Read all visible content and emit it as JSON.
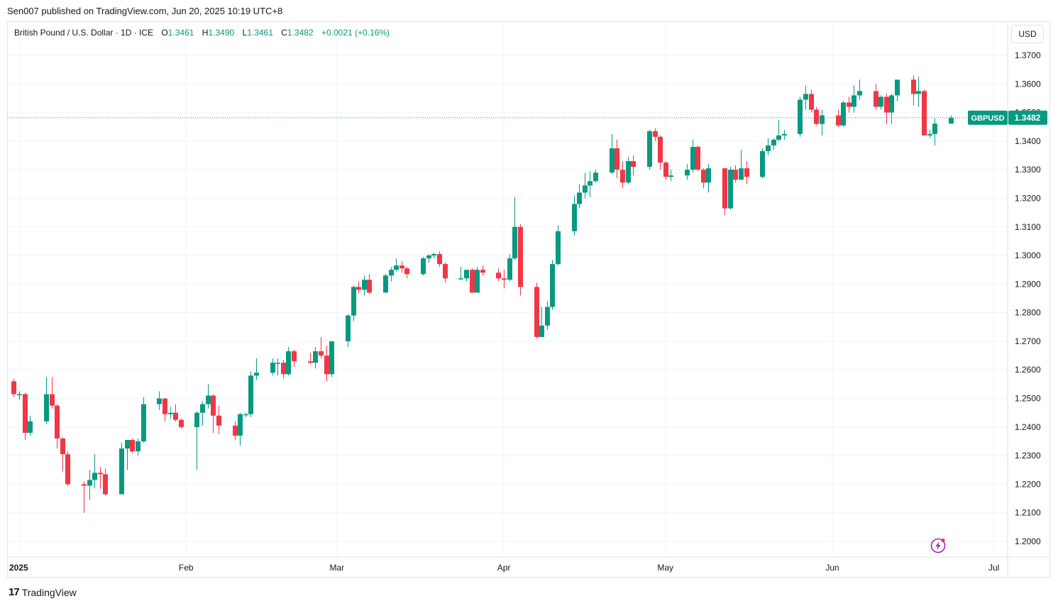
{
  "header": {
    "published": "Sen007 published on TradingView.com, Jun 20, 2025 10:19 UTC+8"
  },
  "legend": {
    "symbol": "British Pound / U.S. Dollar · 1D · ICE",
    "open_label": "O",
    "open": "1.3461",
    "high_label": "H",
    "high": "1.3490",
    "low_label": "L",
    "low": "1.3461",
    "close_label": "C",
    "close": "1.3482",
    "change": "+0.0021 (+0.16%)"
  },
  "toolbar": {
    "currency": "USD"
  },
  "price_tag": {
    "ticker": "GBPUSD",
    "price": "1.3482"
  },
  "footer": {
    "brand": "TradingView",
    "logo_icon": "tradingview-logo-icon"
  },
  "colors": {
    "up": "#089981",
    "down": "#f23645",
    "grid": "#f0f3fa",
    "axis_text": "#131722",
    "tag": "#089981",
    "bolt": "#9c27b0"
  },
  "chart_data": {
    "type": "candlestick",
    "title": "British Pound / U.S. Dollar",
    "interval": "1D",
    "ylim": [
      1.195,
      1.375
    ],
    "y_ticks": [
      "1.3700",
      "1.3600",
      "1.3500",
      "1.3400",
      "1.3300",
      "1.3200",
      "1.3100",
      "1.3000",
      "1.2900",
      "1.2800",
      "1.2700",
      "1.2600",
      "1.2500",
      "1.2400",
      "1.2300",
      "1.2200",
      "1.2100",
      "1.2000"
    ],
    "x_ticks": [
      {
        "label": "2025",
        "date": "2025-01-01"
      },
      {
        "label": "Feb",
        "date": "2025-02-01"
      },
      {
        "label": "Mar",
        "date": "2025-03-01"
      },
      {
        "label": "Apr",
        "date": "2025-04-01"
      },
      {
        "label": "May",
        "date": "2025-05-01"
      },
      {
        "label": "Jun",
        "date": "2025-06-01"
      },
      {
        "label": "Jul",
        "date": "2025-07-01"
      }
    ],
    "last_price": 1.3482,
    "ohlc": [
      {
        "date": "2024-12-31",
        "open": 1.256,
        "high": 1.257,
        "low": 1.2505,
        "close": 1.2515
      },
      {
        "date": "2025-01-01",
        "open": 1.2515,
        "high": 1.2525,
        "low": 1.2495,
        "close": 1.2515
      },
      {
        "date": "2025-01-02",
        "open": 1.2515,
        "high": 1.252,
        "low": 1.2355,
        "close": 1.238
      },
      {
        "date": "2025-01-03",
        "open": 1.238,
        "high": 1.244,
        "low": 1.237,
        "close": 1.242
      },
      {
        "date": "2025-01-06",
        "open": 1.242,
        "high": 1.2575,
        "low": 1.241,
        "close": 1.2515
      },
      {
        "date": "2025-01-07",
        "open": 1.2515,
        "high": 1.2575,
        "low": 1.2465,
        "close": 1.2475
      },
      {
        "date": "2025-01-08",
        "open": 1.2475,
        "high": 1.248,
        "low": 1.2325,
        "close": 1.236
      },
      {
        "date": "2025-01-09",
        "open": 1.236,
        "high": 1.2365,
        "low": 1.2245,
        "close": 1.2305
      },
      {
        "date": "2025-01-10",
        "open": 1.2305,
        "high": 1.2315,
        "low": 1.2195,
        "close": 1.22
      },
      {
        "date": "2025-01-13",
        "open": 1.22,
        "high": 1.221,
        "low": 1.21,
        "close": 1.2195
      },
      {
        "date": "2025-01-14",
        "open": 1.2195,
        "high": 1.225,
        "low": 1.2145,
        "close": 1.2215
      },
      {
        "date": "2025-01-15",
        "open": 1.2215,
        "high": 1.2305,
        "low": 1.2185,
        "close": 1.224
      },
      {
        "date": "2025-01-16",
        "open": 1.224,
        "high": 1.226,
        "low": 1.2185,
        "close": 1.2235
      },
      {
        "date": "2025-01-17",
        "open": 1.2235,
        "high": 1.2255,
        "low": 1.216,
        "close": 1.2165
      },
      {
        "date": "2025-01-20",
        "open": 1.2165,
        "high": 1.2345,
        "low": 1.2165,
        "close": 1.2325
      },
      {
        "date": "2025-01-21",
        "open": 1.2325,
        "high": 1.235,
        "low": 1.225,
        "close": 1.2355
      },
      {
        "date": "2025-01-22",
        "open": 1.2355,
        "high": 1.236,
        "low": 1.231,
        "close": 1.2315
      },
      {
        "date": "2025-01-23",
        "open": 1.2315,
        "high": 1.236,
        "low": 1.23,
        "close": 1.235
      },
      {
        "date": "2025-01-24",
        "open": 1.235,
        "high": 1.2505,
        "low": 1.2345,
        "close": 1.248
      },
      {
        "date": "2025-01-27",
        "open": 1.248,
        "high": 1.2525,
        "low": 1.246,
        "close": 1.25
      },
      {
        "date": "2025-01-28",
        "open": 1.25,
        "high": 1.25,
        "low": 1.242,
        "close": 1.2445
      },
      {
        "date": "2025-01-29",
        "open": 1.2445,
        "high": 1.247,
        "low": 1.243,
        "close": 1.245
      },
      {
        "date": "2025-01-30",
        "open": 1.245,
        "high": 1.248,
        "low": 1.242,
        "close": 1.2425
      },
      {
        "date": "2025-01-31",
        "open": 1.2425,
        "high": 1.243,
        "low": 1.2395,
        "close": 1.24
      },
      {
        "date": "2025-02-03",
        "open": 1.24,
        "high": 1.2455,
        "low": 1.225,
        "close": 1.245
      },
      {
        "date": "2025-02-04",
        "open": 1.245,
        "high": 1.249,
        "low": 1.2405,
        "close": 1.248
      },
      {
        "date": "2025-02-05",
        "open": 1.248,
        "high": 1.255,
        "low": 1.2465,
        "close": 1.251
      },
      {
        "date": "2025-02-06",
        "open": 1.251,
        "high": 1.2515,
        "low": 1.238,
        "close": 1.244
      },
      {
        "date": "2025-02-07",
        "open": 1.244,
        "high": 1.2475,
        "low": 1.2375,
        "close": 1.2405
      },
      {
        "date": "2025-02-10",
        "open": 1.2405,
        "high": 1.242,
        "low": 1.2355,
        "close": 1.237
      },
      {
        "date": "2025-02-11",
        "open": 1.237,
        "high": 1.245,
        "low": 1.2335,
        "close": 1.2445
      },
      {
        "date": "2025-02-12",
        "open": 1.2445,
        "high": 1.245,
        "low": 1.2435,
        "close": 1.2445
      },
      {
        "date": "2025-02-13",
        "open": 1.2445,
        "high": 1.2595,
        "low": 1.2435,
        "close": 1.258
      },
      {
        "date": "2025-02-14",
        "open": 1.258,
        "high": 1.264,
        "low": 1.2565,
        "close": 1.259
      },
      {
        "date": "2025-02-17",
        "open": 1.259,
        "high": 1.264,
        "low": 1.258,
        "close": 1.2625
      },
      {
        "date": "2025-02-18",
        "open": 1.2625,
        "high": 1.264,
        "low": 1.258,
        "close": 1.2625
      },
      {
        "date": "2025-02-19",
        "open": 1.2625,
        "high": 1.2635,
        "low": 1.257,
        "close": 1.2585
      },
      {
        "date": "2025-02-20",
        "open": 1.2585,
        "high": 1.268,
        "low": 1.258,
        "close": 1.2665
      },
      {
        "date": "2025-02-21",
        "open": 1.2665,
        "high": 1.267,
        "low": 1.261,
        "close": 1.263
      },
      {
        "date": "2025-02-24",
        "open": 1.263,
        "high": 1.266,
        "low": 1.262,
        "close": 1.2625
      },
      {
        "date": "2025-02-25",
        "open": 1.2625,
        "high": 1.268,
        "low": 1.2605,
        "close": 1.2665
      },
      {
        "date": "2025-02-26",
        "open": 1.2665,
        "high": 1.2715,
        "low": 1.264,
        "close": 1.265
      },
      {
        "date": "2025-02-27",
        "open": 1.265,
        "high": 1.2685,
        "low": 1.256,
        "close": 1.2585
      },
      {
        "date": "2025-02-28",
        "open": 1.2585,
        "high": 1.27,
        "low": 1.2575,
        "close": 1.27
      },
      {
        "date": "2025-03-03",
        "open": 1.27,
        "high": 1.2795,
        "low": 1.268,
        "close": 1.279
      },
      {
        "date": "2025-03-04",
        "open": 1.279,
        "high": 1.2895,
        "low": 1.277,
        "close": 1.289
      },
      {
        "date": "2025-03-05",
        "open": 1.289,
        "high": 1.291,
        "low": 1.287,
        "close": 1.288
      },
      {
        "date": "2025-03-06",
        "open": 1.288,
        "high": 1.293,
        "low": 1.286,
        "close": 1.2915
      },
      {
        "date": "2025-03-07",
        "open": 1.2915,
        "high": 1.2935,
        "low": 1.2865,
        "close": 1.287
      },
      {
        "date": "2025-03-10",
        "open": 1.287,
        "high": 1.2935,
        "low": 1.287,
        "close": 1.293
      },
      {
        "date": "2025-03-11",
        "open": 1.293,
        "high": 1.296,
        "low": 1.291,
        "close": 1.295
      },
      {
        "date": "2025-03-12",
        "open": 1.295,
        "high": 1.299,
        "low": 1.2945,
        "close": 1.2965
      },
      {
        "date": "2025-03-13",
        "open": 1.2965,
        "high": 1.298,
        "low": 1.294,
        "close": 1.2955
      },
      {
        "date": "2025-03-14",
        "open": 1.2955,
        "high": 1.296,
        "low": 1.292,
        "close": 1.2935
      },
      {
        "date": "2025-03-17",
        "open": 1.2935,
        "high": 1.2995,
        "low": 1.293,
        "close": 1.299
      },
      {
        "date": "2025-03-18",
        "open": 1.299,
        "high": 1.3005,
        "low": 1.2975,
        "close": 1.3
      },
      {
        "date": "2025-03-19",
        "open": 1.3,
        "high": 1.301,
        "low": 1.299,
        "close": 1.3005
      },
      {
        "date": "2025-03-20",
        "open": 1.3005,
        "high": 1.3015,
        "low": 1.296,
        "close": 1.297
      },
      {
        "date": "2025-03-21",
        "open": 1.297,
        "high": 1.2975,
        "low": 1.2905,
        "close": 1.292
      },
      {
        "date": "2025-03-24",
        "open": 1.292,
        "high": 1.296,
        "low": 1.2915,
        "close": 1.292
      },
      {
        "date": "2025-03-25",
        "open": 1.292,
        "high": 1.295,
        "low": 1.291,
        "close": 1.295
      },
      {
        "date": "2025-03-26",
        "open": 1.295,
        "high": 1.2955,
        "low": 1.287,
        "close": 1.287
      },
      {
        "date": "2025-03-27",
        "open": 1.287,
        "high": 1.296,
        "low": 1.287,
        "close": 1.295
      },
      {
        "date": "2025-03-28",
        "open": 1.295,
        "high": 1.2965,
        "low": 1.293,
        "close": 1.294
      },
      {
        "date": "2025-03-31",
        "open": 1.294,
        "high": 1.2955,
        "low": 1.291,
        "close": 1.292
      },
      {
        "date": "2025-04-01",
        "open": 1.292,
        "high": 1.295,
        "low": 1.2885,
        "close": 1.2915
      },
      {
        "date": "2025-04-02",
        "open": 1.2915,
        "high": 1.3005,
        "low": 1.291,
        "close": 1.299
      },
      {
        "date": "2025-04-03",
        "open": 1.299,
        "high": 1.3205,
        "low": 1.2985,
        "close": 1.31
      },
      {
        "date": "2025-04-04",
        "open": 1.31,
        "high": 1.311,
        "low": 1.286,
        "close": 1.289
      },
      {
        "date": "2025-04-07",
        "open": 1.289,
        "high": 1.2905,
        "low": 1.271,
        "close": 1.2715
      },
      {
        "date": "2025-04-08",
        "open": 1.2715,
        "high": 1.282,
        "low": 1.2715,
        "close": 1.2755
      },
      {
        "date": "2025-04-09",
        "open": 1.2755,
        "high": 1.284,
        "low": 1.274,
        "close": 1.282
      },
      {
        "date": "2025-04-10",
        "open": 1.282,
        "high": 1.2985,
        "low": 1.281,
        "close": 1.297
      },
      {
        "date": "2025-04-11",
        "open": 1.297,
        "high": 1.3105,
        "low": 1.2965,
        "close": 1.3085
      },
      {
        "date": "2025-04-14",
        "open": 1.3085,
        "high": 1.321,
        "low": 1.307,
        "close": 1.318
      },
      {
        "date": "2025-04-15",
        "open": 1.318,
        "high": 1.325,
        "low": 1.3165,
        "close": 1.322
      },
      {
        "date": "2025-04-16",
        "open": 1.322,
        "high": 1.329,
        "low": 1.32,
        "close": 1.3245
      },
      {
        "date": "2025-04-17",
        "open": 1.3245,
        "high": 1.3295,
        "low": 1.3205,
        "close": 1.326
      },
      {
        "date": "2025-04-18",
        "open": 1.326,
        "high": 1.33,
        "low": 1.3255,
        "close": 1.329
      },
      {
        "date": "2025-04-21",
        "open": 1.329,
        "high": 1.3425,
        "low": 1.3285,
        "close": 1.3375
      },
      {
        "date": "2025-04-22",
        "open": 1.3375,
        "high": 1.3405,
        "low": 1.327,
        "close": 1.33
      },
      {
        "date": "2025-04-23",
        "open": 1.33,
        "high": 1.333,
        "low": 1.3235,
        "close": 1.3255
      },
      {
        "date": "2025-04-24",
        "open": 1.3255,
        "high": 1.3345,
        "low": 1.325,
        "close": 1.333
      },
      {
        "date": "2025-04-25",
        "open": 1.333,
        "high": 1.335,
        "low": 1.328,
        "close": 1.331
      },
      {
        "date": "2025-04-28",
        "open": 1.331,
        "high": 1.344,
        "low": 1.33,
        "close": 1.3435
      },
      {
        "date": "2025-04-29",
        "open": 1.3435,
        "high": 1.3445,
        "low": 1.34,
        "close": 1.3415
      },
      {
        "date": "2025-04-30",
        "open": 1.3415,
        "high": 1.342,
        "low": 1.33,
        "close": 1.3325
      },
      {
        "date": "2025-05-01",
        "open": 1.3325,
        "high": 1.333,
        "low": 1.3265,
        "close": 1.3275
      },
      {
        "date": "2025-05-02",
        "open": 1.3275,
        "high": 1.33,
        "low": 1.326,
        "close": 1.328
      },
      {
        "date": "2025-05-05",
        "open": 1.328,
        "high": 1.332,
        "low": 1.3265,
        "close": 1.33
      },
      {
        "date": "2025-05-06",
        "open": 1.33,
        "high": 1.3405,
        "low": 1.329,
        "close": 1.338
      },
      {
        "date": "2025-05-07",
        "open": 1.338,
        "high": 1.3385,
        "low": 1.3295,
        "close": 1.33
      },
      {
        "date": "2025-05-08",
        "open": 1.33,
        "high": 1.3305,
        "low": 1.3235,
        "close": 1.3255
      },
      {
        "date": "2025-05-09",
        "open": 1.3255,
        "high": 1.332,
        "low": 1.322,
        "close": 1.3305
      },
      {
        "date": "2025-05-12",
        "open": 1.3305,
        "high": 1.3305,
        "low": 1.314,
        "close": 1.3165
      },
      {
        "date": "2025-05-13",
        "open": 1.3165,
        "high": 1.331,
        "low": 1.316,
        "close": 1.33
      },
      {
        "date": "2025-05-14",
        "open": 1.33,
        "high": 1.3315,
        "low": 1.3255,
        "close": 1.3265
      },
      {
        "date": "2025-05-15",
        "open": 1.3265,
        "high": 1.337,
        "low": 1.3265,
        "close": 1.3305
      },
      {
        "date": "2025-05-16",
        "open": 1.3305,
        "high": 1.333,
        "low": 1.325,
        "close": 1.3275
      },
      {
        "date": "2025-05-19",
        "open": 1.3275,
        "high": 1.3375,
        "low": 1.327,
        "close": 1.3365
      },
      {
        "date": "2025-05-20",
        "open": 1.3365,
        "high": 1.341,
        "low": 1.335,
        "close": 1.3385
      },
      {
        "date": "2025-05-21",
        "open": 1.3385,
        "high": 1.341,
        "low": 1.337,
        "close": 1.3405
      },
      {
        "date": "2025-05-22",
        "open": 1.3405,
        "high": 1.3475,
        "low": 1.34,
        "close": 1.342
      },
      {
        "date": "2025-05-23",
        "open": 1.342,
        "high": 1.344,
        "low": 1.3405,
        "close": 1.3425
      },
      {
        "date": "2025-05-26",
        "open": 1.3425,
        "high": 1.3555,
        "low": 1.3415,
        "close": 1.3545
      },
      {
        "date": "2025-05-27",
        "open": 1.3545,
        "high": 1.3595,
        "low": 1.351,
        "close": 1.3565
      },
      {
        "date": "2025-05-28",
        "open": 1.3565,
        "high": 1.358,
        "low": 1.35,
        "close": 1.351
      },
      {
        "date": "2025-05-29",
        "open": 1.351,
        "high": 1.352,
        "low": 1.3455,
        "close": 1.346
      },
      {
        "date": "2025-05-30",
        "open": 1.346,
        "high": 1.351,
        "low": 1.342,
        "close": 1.349
      },
      {
        "date": "2025-06-02",
        "open": 1.349,
        "high": 1.351,
        "low": 1.345,
        "close": 1.3455
      },
      {
        "date": "2025-06-03",
        "open": 1.3455,
        "high": 1.354,
        "low": 1.345,
        "close": 1.3535
      },
      {
        "date": "2025-06-04",
        "open": 1.3535,
        "high": 1.3555,
        "low": 1.35,
        "close": 1.352
      },
      {
        "date": "2025-06-05",
        "open": 1.352,
        "high": 1.3595,
        "low": 1.35,
        "close": 1.356
      },
      {
        "date": "2025-06-06",
        "open": 1.356,
        "high": 1.3615,
        "low": 1.3545,
        "close": 1.3575
      },
      {
        "date": "2025-06-09",
        "open": 1.3575,
        "high": 1.36,
        "low": 1.351,
        "close": 1.352
      },
      {
        "date": "2025-06-10",
        "open": 1.352,
        "high": 1.356,
        "low": 1.351,
        "close": 1.3555
      },
      {
        "date": "2025-06-11",
        "open": 1.3555,
        "high": 1.3565,
        "low": 1.346,
        "close": 1.35
      },
      {
        "date": "2025-06-12",
        "open": 1.35,
        "high": 1.3565,
        "low": 1.346,
        "close": 1.356
      },
      {
        "date": "2025-06-13",
        "open": 1.356,
        "high": 1.3615,
        "low": 1.354,
        "close": 1.3615
      },
      {
        "date": "2025-06-16",
        "open": 1.3615,
        "high": 1.363,
        "low": 1.3525,
        "close": 1.3565
      },
      {
        "date": "2025-06-17",
        "open": 1.3565,
        "high": 1.3625,
        "low": 1.352,
        "close": 1.3575
      },
      {
        "date": "2025-06-18",
        "open": 1.3575,
        "high": 1.358,
        "low": 1.342,
        "close": 1.342
      },
      {
        "date": "2025-06-19",
        "open": 1.342,
        "high": 1.344,
        "low": 1.341,
        "close": 1.3425
      },
      {
        "date": "2025-06-20",
        "open": 1.3425,
        "high": 1.348,
        "low": 1.3385,
        "close": 1.3461
      },
      {
        "date": "2025-06-23",
        "open": 1.3461,
        "high": 1.349,
        "low": 1.3461,
        "close": 1.3482
      }
    ]
  }
}
